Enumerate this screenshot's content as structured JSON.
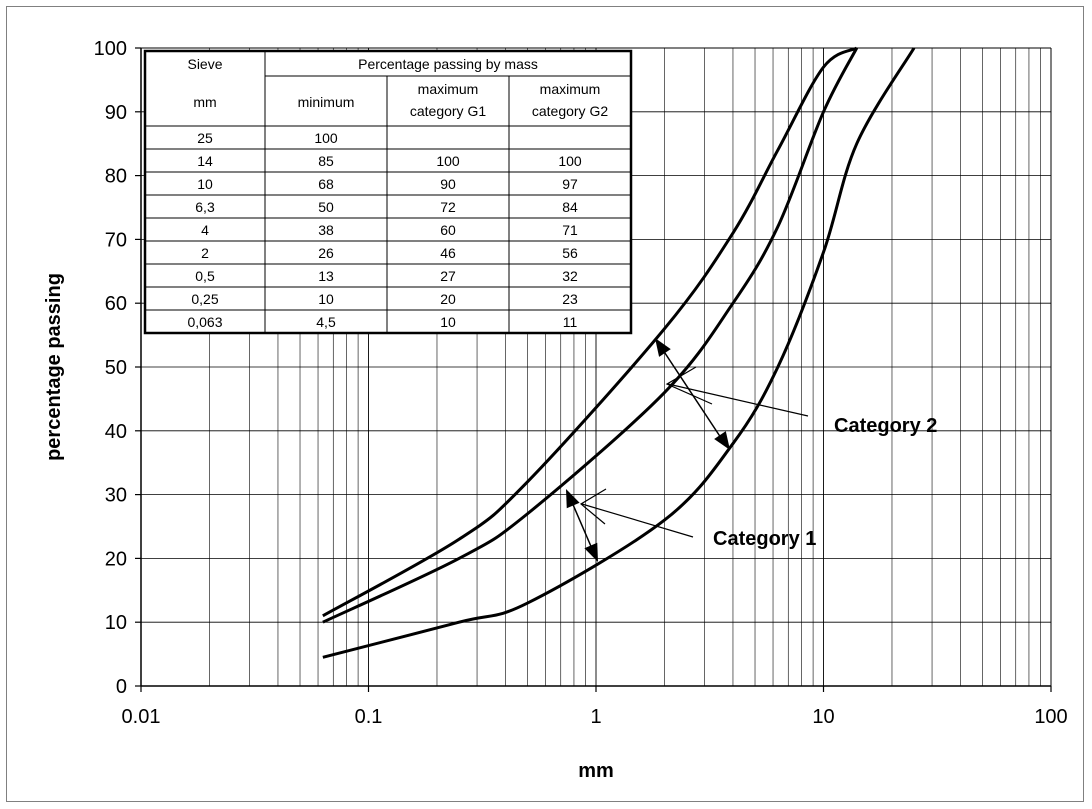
{
  "chart_data": {
    "type": "line",
    "title": "",
    "xlabel": "mm",
    "ylabel": "percentage passing",
    "x_scale": "log",
    "xlim": [
      0.01,
      100
    ],
    "ylim": [
      0,
      100
    ],
    "grid": true,
    "x_tick_labels": [
      "0.01",
      "0.1",
      "1",
      "10",
      "100"
    ],
    "y_tick_labels": [
      "0",
      "10",
      "20",
      "30",
      "40",
      "50",
      "60",
      "70",
      "80",
      "90",
      "100"
    ],
    "series": [
      {
        "x": [
          0.063,
          0.25,
          0.5,
          2,
          4,
          6.3,
          10,
          14,
          25
        ],
        "y": [
          4.5,
          10,
          13,
          26,
          38,
          50,
          68,
          85,
          100
        ]
      },
      {
        "x": [
          0.063,
          0.25,
          0.5,
          2,
          4,
          6.3,
          10,
          14
        ],
        "y": [
          10,
          20,
          27,
          46,
          60,
          72,
          90,
          100
        ]
      },
      {
        "x": [
          0.063,
          0.25,
          0.5,
          2,
          4,
          6.3,
          10,
          14
        ],
        "y": [
          11,
          23,
          32,
          56,
          71,
          84,
          97,
          100
        ]
      }
    ],
    "annotations": [
      {
        "text": "Category 2"
      },
      {
        "text": "Category 1"
      }
    ],
    "table": {
      "header_row1": [
        "Sieve",
        "Percentage passing by mass"
      ],
      "header_row2": [
        "mm",
        "minimum",
        "maximum\ncategory G1",
        "maximum\ncategory G2"
      ],
      "rows": [
        [
          "25",
          "100",
          "",
          ""
        ],
        [
          "14",
          "85",
          "100",
          "100"
        ],
        [
          "10",
          "68",
          "90",
          "97"
        ],
        [
          "6,3",
          "50",
          "72",
          "84"
        ],
        [
          "4",
          "38",
          "60",
          "71"
        ],
        [
          "2",
          "26",
          "46",
          "56"
        ],
        [
          "0,5",
          "13",
          "27",
          "32"
        ],
        [
          "0,25",
          "10",
          "20",
          "23"
        ],
        [
          "0,063",
          "4,5",
          "10",
          "11"
        ]
      ]
    }
  }
}
